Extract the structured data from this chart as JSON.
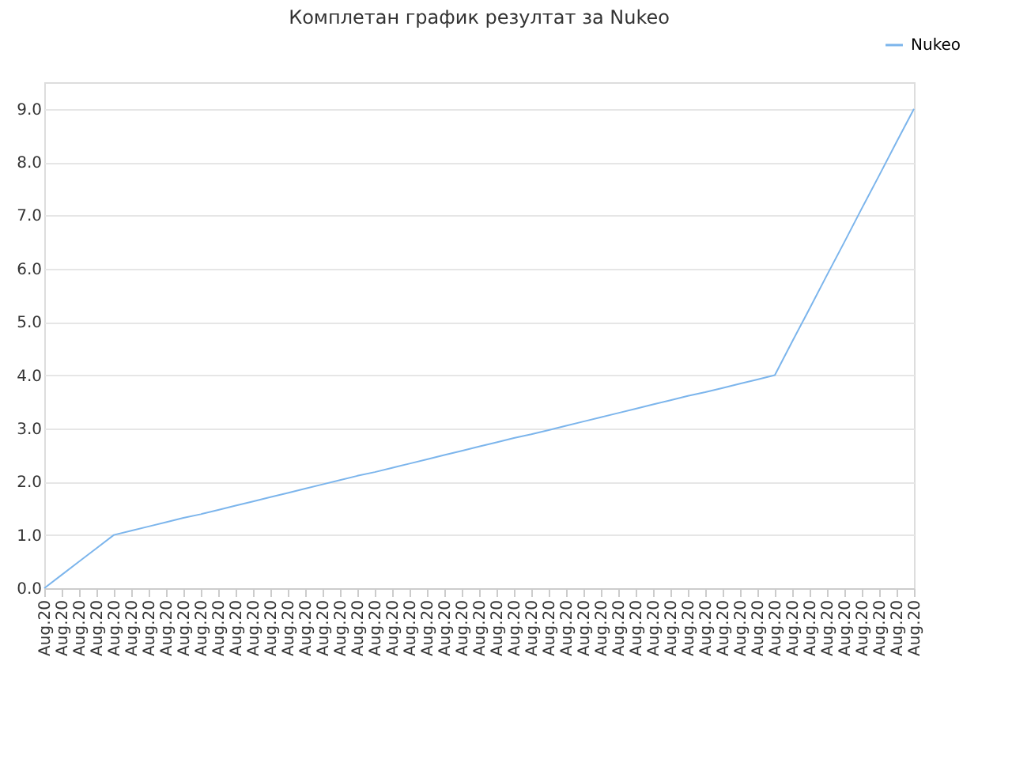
{
  "chart_data": {
    "type": "line",
    "title": "Комплетан график резултат за Nukeo",
    "categories": [
      "Aug.20",
      "Aug.20",
      "Aug.20",
      "Aug.20",
      "Aug.20",
      "Aug.20",
      "Aug.20",
      "Aug.20",
      "Aug.20",
      "Aug.20",
      "Aug.20",
      "Aug.20",
      "Aug.20",
      "Aug.20",
      "Aug.20",
      "Aug.20",
      "Aug.20",
      "Aug.20",
      "Aug.20",
      "Aug.20",
      "Aug.20",
      "Aug.20",
      "Aug.20",
      "Aug.20",
      "Aug.20",
      "Aug.20",
      "Aug.20",
      "Aug.20",
      "Aug.20",
      "Aug.20",
      "Aug.20",
      "Aug.20",
      "Aug.20",
      "Aug.20",
      "Aug.20",
      "Aug.20",
      "Aug.20",
      "Aug.20",
      "Aug.20",
      "Aug.20",
      "Aug.20",
      "Aug.20",
      "Aug.20",
      "Aug.20",
      "Aug.20",
      "Aug.20",
      "Aug.20",
      "Aug.20",
      "Aug.20",
      "Aug.20",
      "Aug.20"
    ],
    "series": [
      {
        "name": "Nukeo",
        "color": "#7cb5ec",
        "values": [
          0,
          0.25,
          0.5,
          0.75,
          1,
          1.08,
          1.16,
          1.24,
          1.32,
          1.39,
          1.47,
          1.55,
          1.63,
          1.71,
          1.79,
          1.87,
          1.95,
          2.03,
          2.11,
          2.18,
          2.26,
          2.34,
          2.42,
          2.5,
          2.58,
          2.66,
          2.74,
          2.82,
          2.89,
          2.97,
          3.05,
          3.13,
          3.21,
          3.29,
          3.37,
          3.45,
          3.53,
          3.61,
          3.68,
          3.76,
          3.84,
          3.92,
          4,
          4.63,
          5.25,
          5.88,
          6.5,
          7.13,
          7.75,
          8.38,
          9
        ]
      }
    ],
    "ylim": [
      0,
      9.5
    ],
    "yticks": [
      {
        "value": 0,
        "label": "0.0"
      },
      {
        "value": 1,
        "label": "1.0"
      },
      {
        "value": 2,
        "label": "2.0"
      },
      {
        "value": 3,
        "label": "3.0"
      },
      {
        "value": 4,
        "label": "4.0"
      },
      {
        "value": 5,
        "label": "5.0"
      },
      {
        "value": 6,
        "label": "6.0"
      },
      {
        "value": 7,
        "label": "7.0"
      },
      {
        "value": 8,
        "label": "8.0"
      },
      {
        "value": 9,
        "label": "9.0"
      }
    ],
    "grid": "y",
    "legend": "top right",
    "marker": "none",
    "line_style": "solid"
  }
}
